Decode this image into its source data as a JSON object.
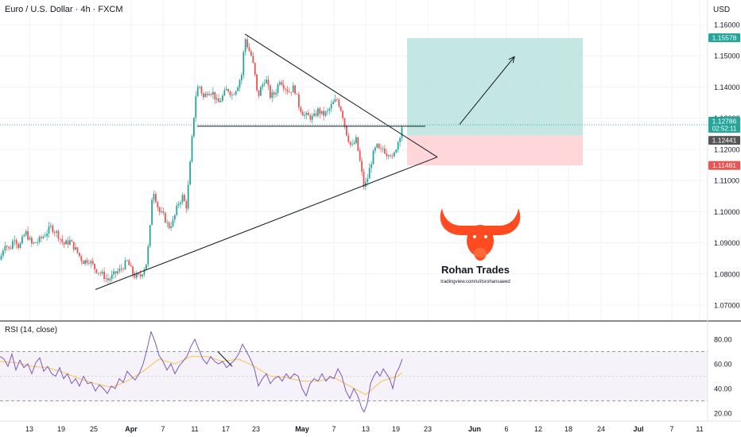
{
  "header": {
    "symbol_title": "Euro / U.S. Dollar · 4h · FXCM",
    "currency": "USD"
  },
  "rsi_panel": {
    "title": "RSI (14, close)"
  },
  "colors": {
    "bull": "#26a69a",
    "bear": "#ef5350",
    "rsi_line": "#7e57c2",
    "rsi_ma": "#f7c548",
    "target_zone": "#b2dfdb",
    "stop_zone": "#ffcdd2",
    "logo": "#ff4b1f"
  },
  "watermark": {
    "brand": "Rohan Trades",
    "url": "tradingview.com/u/itsrohansaeed"
  },
  "chart_data": [
    {
      "type": "candlestick",
      "title": "Euro / U.S. Dollar · 4h · FXCM",
      "y_axis_ticks": [
        "1.16000",
        "1.15000",
        "1.14000",
        "1.13000",
        "1.12000",
        "1.11000",
        "1.10000",
        "1.09000",
        "1.08000",
        "1.07000"
      ],
      "ylim": [
        1.065,
        1.165
      ],
      "x_axis_ticks": [
        "13",
        "19",
        "25",
        "Apr",
        "7",
        "11",
        "17",
        "23",
        "May",
        "7",
        "13",
        "19",
        "23",
        "Jun",
        "6",
        "12",
        "18",
        "24",
        "Jul",
        "7",
        "11"
      ],
      "price_labels": [
        {
          "value": "1.15578",
          "color": "#26a69a"
        },
        {
          "value": "1.12786",
          "sub": "02:52:11",
          "color": "#26a69a"
        },
        {
          "value": "1.12441",
          "color": "#555555"
        },
        {
          "value": "1.11481",
          "color": "#ef5350"
        }
      ],
      "price_path": [
        [
          0,
          1.0845
        ],
        [
          6,
          1.09
        ],
        [
          12,
          1.0875
        ],
        [
          18,
          1.092
        ],
        [
          24,
          1.0885
        ],
        [
          32,
          1.0935
        ],
        [
          40,
          1.0895
        ],
        [
          48,
          1.0905
        ],
        [
          56,
          1.0925
        ],
        [
          64,
          1.095
        ],
        [
          72,
          1.093
        ],
        [
          80,
          1.0895
        ],
        [
          88,
          1.0905
        ],
        [
          96,
          1.0875
        ],
        [
          104,
          1.084
        ],
        [
          112,
          1.0845
        ],
        [
          120,
          1.0815
        ],
        [
          128,
          1.08
        ],
        [
          136,
          1.078
        ],
        [
          144,
          1.08
        ],
        [
          152,
          1.0815
        ],
        [
          160,
          1.084
        ],
        [
          168,
          1.0795
        ],
        [
          176,
          1.079
        ],
        [
          184,
          1.0835
        ],
        [
          188,
          1.092
        ],
        [
          192,
          1.108
        ],
        [
          196,
          1.104
        ],
        [
          200,
          1.1
        ],
        [
          206,
          1.0985
        ],
        [
          212,
          1.095
        ],
        [
          218,
          1.097
        ],
        [
          224,
          1.1025
        ],
        [
          230,
          1.105
        ],
        [
          234,
          1.101
        ],
        [
          238,
          1.1115
        ],
        [
          242,
          1.125
        ],
        [
          246,
          1.137
        ],
        [
          250,
          1.141
        ],
        [
          256,
          1.1365
        ],
        [
          262,
          1.139
        ],
        [
          268,
          1.138
        ],
        [
          274,
          1.1345
        ],
        [
          280,
          1.137
        ],
        [
          286,
          1.1395
        ],
        [
          292,
          1.1375
        ],
        [
          298,
          1.14
        ],
        [
          304,
          1.144
        ],
        [
          308,
          1.156
        ],
        [
          312,
          1.1525
        ],
        [
          316,
          1.15
        ],
        [
          320,
          1.145
        ],
        [
          324,
          1.1365
        ],
        [
          328,
          1.1395
        ],
        [
          334,
          1.143
        ],
        [
          340,
          1.137
        ],
        [
          346,
          1.138
        ],
        [
          352,
          1.1425
        ],
        [
          358,
          1.14
        ],
        [
          364,
          1.1385
        ],
        [
          370,
          1.14
        ],
        [
          376,
          1.134
        ],
        [
          382,
          1.131
        ],
        [
          388,
          1.1305
        ],
        [
          394,
          1.13
        ],
        [
          400,
          1.1325
        ],
        [
          406,
          1.131
        ],
        [
          412,
          1.132
        ],
        [
          418,
          1.1345
        ],
        [
          424,
          1.136
        ],
        [
          430,
          1.132
        ],
        [
          436,
          1.125
        ],
        [
          442,
          1.1205
        ],
        [
          448,
          1.123
        ],
        [
          454,
          1.114
        ],
        [
          458,
          1.1075
        ],
        [
          462,
          1.1105
        ],
        [
          466,
          1.115
        ],
        [
          470,
          1.119
        ],
        [
          474,
          1.121
        ],
        [
          478,
          1.119
        ],
        [
          482,
          1.1205
        ],
        [
          486,
          1.1185
        ],
        [
          490,
          1.1195
        ],
        [
          494,
          1.1165
        ],
        [
          498,
          1.1205
        ],
        [
          502,
          1.1235
        ],
        [
          506,
          1.1279
        ]
      ],
      "annotations": {
        "upper_trendline": [
          [
            308,
            1.157
          ],
          [
            550,
            1.1175
          ]
        ],
        "lower_trendline": [
          [
            120,
            1.075
          ],
          [
            550,
            1.1175
          ]
        ],
        "support_line": {
          "value": 1.1274,
          "from": 248,
          "to": 535
        },
        "target_zone": {
          "from": 512,
          "to": 733,
          "top": 1.1557,
          "bottom": 1.1244
        },
        "stop_zone": {
          "from": 512,
          "to": 733,
          "top": 1.1244,
          "bottom": 1.1148
        },
        "arrow": [
          [
            578,
            1.128
          ],
          [
            647,
            1.1497
          ]
        ]
      }
    },
    {
      "type": "line",
      "title": "RSI (14, close)",
      "y_axis_ticks": [
        "80.00",
        "60.00",
        "40.00",
        "20.00"
      ],
      "ylim": [
        15,
        95
      ],
      "bands": [
        70,
        30
      ],
      "midline": 50,
      "series": [
        {
          "values": [
            [
              0,
              66
            ],
            [
              5,
              64
            ],
            [
              10,
              58
            ],
            [
              15,
              68
            ],
            [
              20,
              55
            ],
            [
              25,
              63
            ],
            [
              30,
              57
            ],
            [
              35,
              60
            ],
            [
              40,
              52
            ],
            [
              45,
              61
            ],
            [
              50,
              65
            ],
            [
              55,
              54
            ],
            [
              60,
              58
            ],
            [
              65,
              52
            ],
            [
              70,
              50
            ],
            [
              75,
              57
            ],
            [
              80,
              48
            ],
            [
              85,
              52
            ],
            [
              90,
              44
            ],
            [
              95,
              48
            ],
            [
              100,
              42
            ],
            [
              105,
              50
            ],
            [
              110,
              44
            ],
            [
              115,
              45
            ],
            [
              120,
              38
            ],
            [
              125,
              43
            ],
            [
              130,
              40
            ],
            [
              135,
              36
            ],
            [
              140,
              42
            ],
            [
              145,
              40
            ],
            [
              150,
              48
            ],
            [
              155,
              45
            ],
            [
              160,
              54
            ],
            [
              165,
              50
            ],
            [
              170,
              47
            ],
            [
              175,
              52
            ],
            [
              180,
              60
            ],
            [
              185,
              72
            ],
            [
              190,
              86
            ],
            [
              195,
              78
            ],
            [
              200,
              67
            ],
            [
              205,
              62
            ],
            [
              210,
              55
            ],
            [
              215,
              60
            ],
            [
              220,
              52
            ],
            [
              225,
              58
            ],
            [
              230,
              62
            ],
            [
              235,
              66
            ],
            [
              240,
              74
            ],
            [
              245,
              80
            ],
            [
              250,
              72
            ],
            [
              255,
              64
            ],
            [
              260,
              60
            ],
            [
              265,
              66
            ],
            [
              270,
              62
            ],
            [
              275,
              60
            ],
            [
              280,
              62
            ],
            [
              285,
              57
            ],
            [
              290,
              60
            ],
            [
              295,
              63
            ],
            [
              300,
              68
            ],
            [
              305,
              76
            ],
            [
              310,
              70
            ],
            [
              315,
              64
            ],
            [
              320,
              56
            ],
            [
              325,
              42
            ],
            [
              330,
              48
            ],
            [
              335,
              52
            ],
            [
              340,
              44
            ],
            [
              345,
              48
            ],
            [
              350,
              50
            ],
            [
              355,
              46
            ],
            [
              360,
              52
            ],
            [
              365,
              48
            ],
            [
              370,
              52
            ],
            [
              375,
              50
            ],
            [
              380,
              40
            ],
            [
              385,
              34
            ],
            [
              390,
              44
            ],
            [
              395,
              48
            ],
            [
              400,
              46
            ],
            [
              405,
              52
            ],
            [
              410,
              46
            ],
            [
              415,
              50
            ],
            [
              420,
              48
            ],
            [
              425,
              56
            ],
            [
              430,
              50
            ],
            [
              435,
              38
            ],
            [
              440,
              32
            ],
            [
              445,
              40
            ],
            [
              450,
              34
            ],
            [
              455,
              24
            ],
            [
              458,
              21
            ],
            [
              462,
              28
            ],
            [
              466,
              44
            ],
            [
              470,
              50
            ],
            [
              474,
              54
            ],
            [
              478,
              50
            ],
            [
              482,
              56
            ],
            [
              486,
              52
            ],
            [
              490,
              48
            ],
            [
              494,
              40
            ],
            [
              498,
              52
            ],
            [
              502,
              57
            ],
            [
              506,
              64
            ]
          ]
        },
        {
          "values": [
            [
              0,
              62
            ],
            [
              20,
              61
            ],
            [
              40,
              58
            ],
            [
              60,
              57
            ],
            [
              80,
              53
            ],
            [
              100,
              48
            ],
            [
              120,
              44
            ],
            [
              140,
              41
            ],
            [
              160,
              46
            ],
            [
              180,
              54
            ],
            [
              200,
              64
            ],
            [
              220,
              60
            ],
            [
              240,
              66
            ],
            [
              260,
              66
            ],
            [
              280,
              62
            ],
            [
              300,
              64
            ],
            [
              320,
              58
            ],
            [
              340,
              50
            ],
            [
              360,
              49
            ],
            [
              380,
              46
            ],
            [
              400,
              46
            ],
            [
              420,
              49
            ],
            [
              440,
              42
            ],
            [
              460,
              35
            ],
            [
              480,
              46
            ],
            [
              500,
              50
            ],
            [
              506,
              53
            ]
          ]
        }
      ]
    }
  ]
}
